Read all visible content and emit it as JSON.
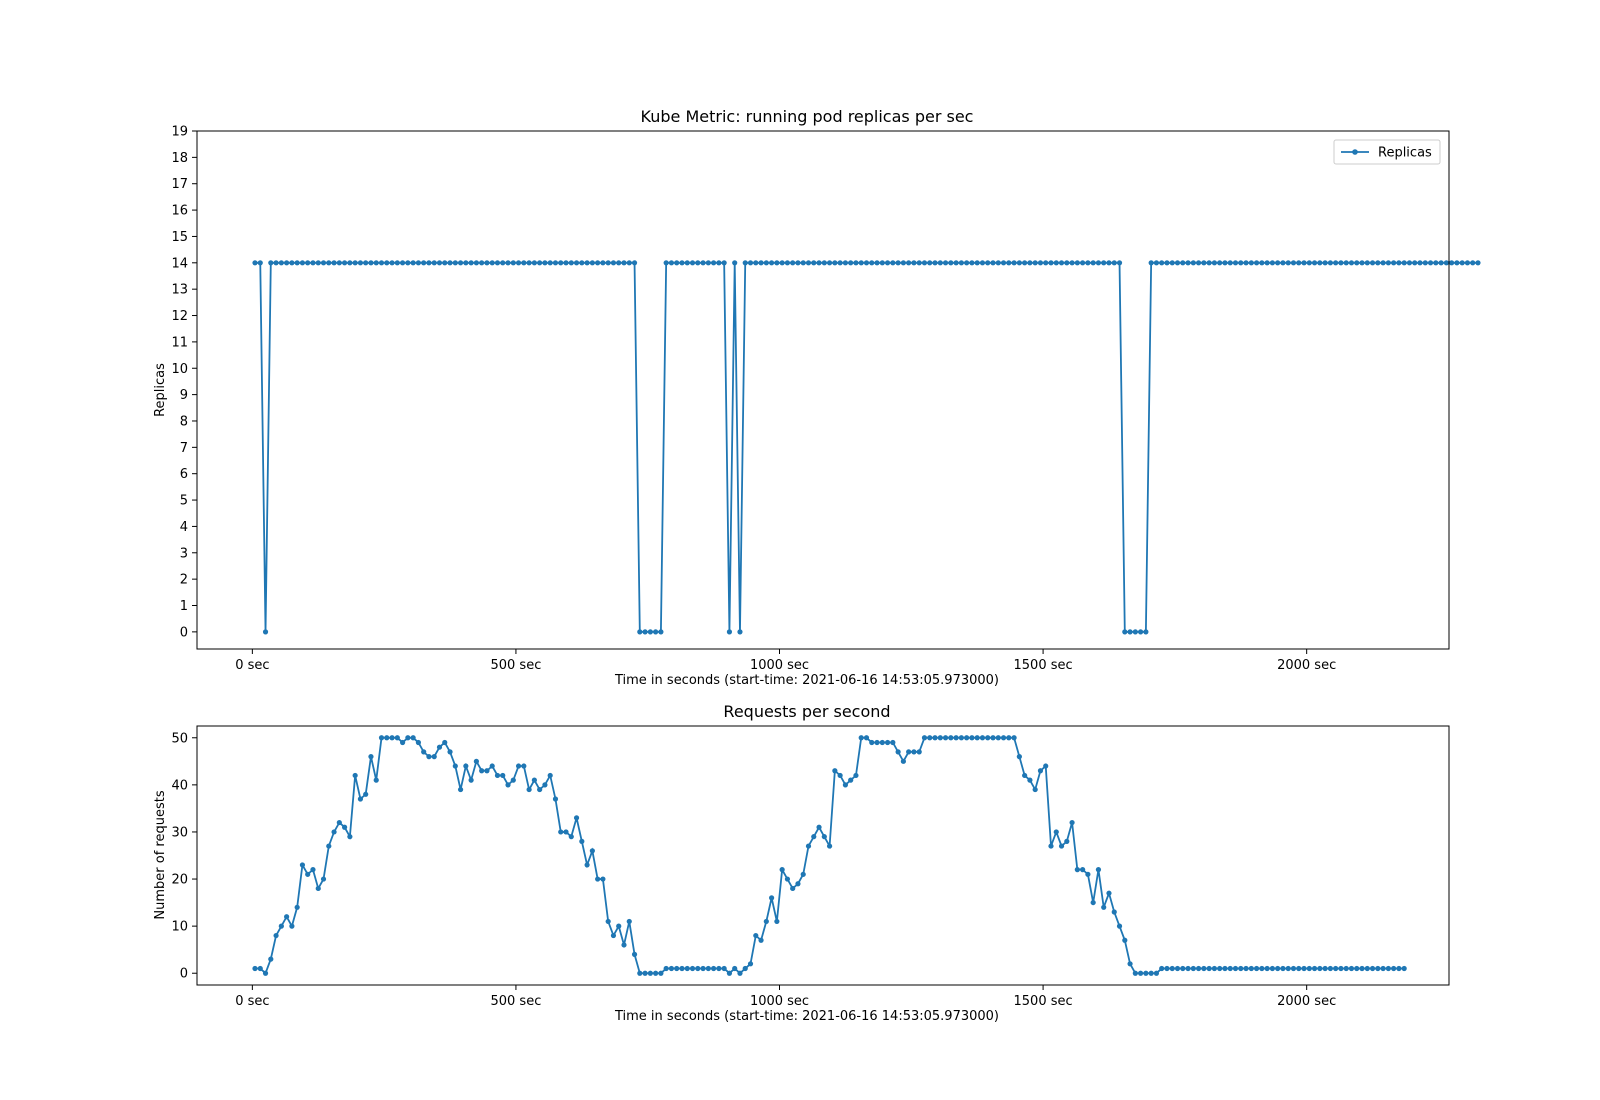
{
  "chart_data": [
    {
      "type": "line",
      "title": "Kube Metric: running pod replicas per sec",
      "xlabel": "Time in seconds (start-time: 2021-06-16 14:53:05.973000)",
      "ylabel": "Replicas",
      "xlim": [
        -105,
        2270
      ],
      "ylim": [
        -0.65,
        19
      ],
      "x_ticks": [
        0,
        500,
        1000,
        1500,
        2000
      ],
      "x_tick_labels": [
        "0 sec",
        "500 sec",
        "1000 sec",
        "1500 sec",
        "2000 sec"
      ],
      "y_ticks": [
        0,
        1,
        2,
        3,
        4,
        5,
        6,
        7,
        8,
        9,
        10,
        11,
        12,
        13,
        14,
        15,
        16,
        17,
        18,
        19
      ],
      "y_tick_labels": [
        "0",
        "1",
        "2",
        "3",
        "4",
        "5",
        "6",
        "7",
        "8",
        "9",
        "10",
        "11",
        "12",
        "13",
        "14",
        "15",
        "16",
        "17",
        "18",
        "19"
      ],
      "grid": false,
      "legend": "top-right",
      "color": "#1f77b4",
      "series": [
        {
          "name": "Replicas",
          "x_start": 5,
          "x_step": 10,
          "values": [
            14,
            14,
            0,
            14,
            14,
            14,
            14,
            14,
            14,
            14,
            14,
            14,
            14,
            14,
            14,
            14,
            14,
            14,
            14,
            14,
            14,
            14,
            14,
            14,
            14,
            14,
            14,
            14,
            14,
            14,
            14,
            14,
            14,
            14,
            14,
            14,
            14,
            14,
            14,
            14,
            14,
            14,
            14,
            14,
            14,
            14,
            14,
            14,
            14,
            14,
            14,
            14,
            14,
            14,
            14,
            14,
            14,
            14,
            14,
            14,
            14,
            14,
            14,
            14,
            14,
            14,
            14,
            14,
            14,
            14,
            14,
            14,
            14,
            0,
            0,
            0,
            0,
            0,
            14,
            14,
            14,
            14,
            14,
            14,
            14,
            14,
            14,
            14,
            14,
            14,
            0,
            14,
            0,
            14,
            14,
            14,
            14,
            14,
            14,
            14,
            14,
            14,
            14,
            14,
            14,
            14,
            14,
            14,
            14,
            14,
            14,
            14,
            14,
            14,
            14,
            14,
            14,
            14,
            14,
            14,
            14,
            14,
            14,
            14,
            14,
            14,
            14,
            14,
            14,
            14,
            14,
            14,
            14,
            14,
            14,
            14,
            14,
            14,
            14,
            14,
            14,
            14,
            14,
            14,
            14,
            14,
            14,
            14,
            14,
            14,
            14,
            14,
            14,
            14,
            14,
            14,
            14,
            14,
            14,
            14,
            14,
            14,
            14,
            14,
            14,
            0,
            0,
            0,
            0,
            0,
            14,
            14,
            14,
            14,
            14,
            14,
            14,
            14,
            14,
            14,
            14,
            14,
            14,
            14,
            14,
            14,
            14,
            14,
            14,
            14,
            14,
            14,
            14,
            14,
            14,
            14,
            14,
            14,
            14,
            14,
            14,
            14,
            14,
            14,
            14,
            14,
            14,
            14,
            14,
            14,
            14,
            14,
            14,
            14,
            14,
            14,
            14,
            14,
            14,
            14,
            14,
            14,
            14,
            14,
            14,
            14,
            14,
            14,
            14,
            14,
            14,
            14,
            14
          ]
        }
      ]
    },
    {
      "type": "line",
      "title": "Requests per second",
      "xlabel": "Time in seconds (start-time: 2021-06-16 14:53:05.973000)",
      "ylabel": "Number of requests",
      "xlim": [
        -105,
        2270
      ],
      "ylim": [
        -2.5,
        52.5
      ],
      "x_ticks": [
        0,
        500,
        1000,
        1500,
        2000
      ],
      "x_tick_labels": [
        "0 sec",
        "500 sec",
        "1000 sec",
        "1500 sec",
        "2000 sec"
      ],
      "y_ticks": [
        0,
        10,
        20,
        30,
        40,
        50
      ],
      "y_tick_labels": [
        "0",
        "10",
        "20",
        "30",
        "40",
        "50"
      ],
      "grid": false,
      "color": "#1f77b4",
      "series": [
        {
          "x_start": 5,
          "x_step": 10,
          "values": [
            1,
            1,
            0,
            3,
            8,
            10,
            12,
            10,
            14,
            23,
            21,
            22,
            18,
            20,
            27,
            30,
            32,
            31,
            29,
            42,
            37,
            38,
            46,
            41,
            50,
            50,
            50,
            50,
            49,
            50,
            50,
            49,
            47,
            46,
            46,
            48,
            49,
            47,
            44,
            39,
            44,
            41,
            45,
            43,
            43,
            44,
            42,
            42,
            40,
            41,
            44,
            44,
            39,
            41,
            39,
            40,
            42,
            37,
            30,
            30,
            29,
            33,
            28,
            23,
            26,
            20,
            20,
            11,
            8,
            10,
            6,
            11,
            4,
            0,
            0,
            0,
            0,
            0,
            1,
            1,
            1,
            1,
            1,
            1,
            1,
            1,
            1,
            1,
            1,
            1,
            0,
            1,
            0,
            1,
            2,
            8,
            7,
            11,
            16,
            11,
            22,
            20,
            18,
            19,
            21,
            27,
            29,
            31,
            29,
            27,
            43,
            42,
            40,
            41,
            42,
            50,
            50,
            49,
            49,
            49,
            49,
            49,
            47,
            45,
            47,
            47,
            47,
            50,
            50,
            50,
            50,
            50,
            50,
            50,
            50,
            50,
            50,
            50,
            50,
            50,
            50,
            50,
            50,
            50,
            50,
            46,
            42,
            41,
            39,
            43,
            44,
            27,
            30,
            27,
            28,
            32,
            22,
            22,
            21,
            15,
            22,
            14,
            17,
            13,
            10,
            7,
            2,
            0,
            0,
            0,
            0,
            0,
            1,
            1,
            1,
            1,
            1,
            1,
            1,
            1,
            1,
            1,
            1,
            1,
            1,
            1,
            1,
            1,
            1,
            1,
            1,
            1,
            1,
            1,
            1,
            1,
            1,
            1,
            1,
            1,
            1,
            1,
            1,
            1,
            1,
            1,
            1,
            1,
            1,
            1,
            1,
            1,
            1,
            1,
            1,
            1,
            1,
            1,
            1
          ]
        }
      ]
    }
  ]
}
